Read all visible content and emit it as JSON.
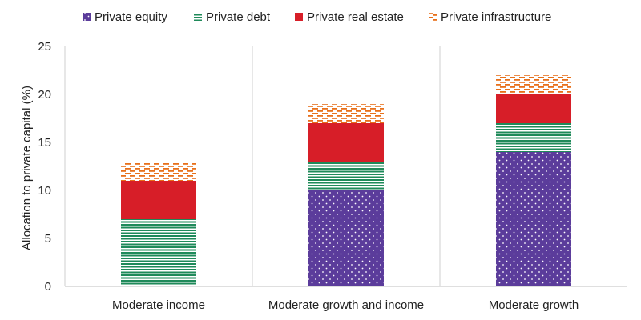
{
  "chart_data": {
    "type": "bar",
    "stacked": true,
    "categories": [
      "Moderate income",
      "Moderate growth and income",
      "Moderate growth"
    ],
    "series": [
      {
        "name": "Private equity",
        "values": [
          0,
          10,
          14
        ],
        "color": "#5b3c9b",
        "pattern": "dots"
      },
      {
        "name": "Private debt",
        "values": [
          7,
          3,
          3
        ],
        "color": "#1f8a5a",
        "pattern": "horizontal-lines"
      },
      {
        "name": "Private real estate",
        "values": [
          4,
          4,
          3
        ],
        "color": "#d71e28",
        "pattern": "solid"
      },
      {
        "name": "Private infrastructure",
        "values": [
          2,
          2,
          2
        ],
        "color": "#e8701a",
        "pattern": "dashes"
      }
    ],
    "ylabel": "Allocation to private capital (%)",
    "ylim": [
      0,
      25
    ],
    "yticks": [
      0,
      5,
      10,
      15,
      20,
      25
    ],
    "grid": false,
    "legend_position": "top"
  }
}
